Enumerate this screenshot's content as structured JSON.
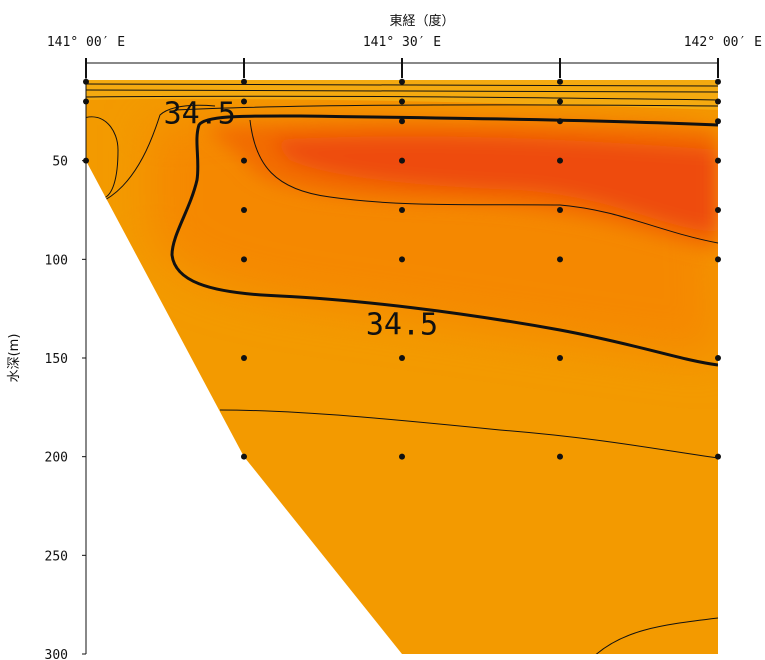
{
  "chart_data": {
    "type": "contour-section",
    "xlabel": "東経（度）",
    "ylabel": "水深(m)",
    "xticks": [
      {
        "value": 141.0,
        "label": "141° 00′ E"
      },
      {
        "value": 141.5,
        "label": "141° 30′ E"
      },
      {
        "value": 142.0,
        "label": "142° 00′ E"
      }
    ],
    "station_x": [
      141.0,
      141.25,
      141.5,
      141.75,
      142.0
    ],
    "yticks": [
      50,
      100,
      150,
      200,
      250,
      300
    ],
    "xlim": [
      141.0,
      142.0
    ],
    "ylim": [
      0,
      300
    ],
    "seafloor": [
      [
        141.0,
        50
      ],
      [
        141.25,
        200
      ],
      [
        141.5,
        300
      ]
    ],
    "stations": [
      {
        "x": 141.0,
        "depths": [
          10,
          20,
          50
        ]
      },
      {
        "x": 141.25,
        "depths": [
          10,
          20,
          50,
          75,
          100,
          150,
          200
        ]
      },
      {
        "x": 141.5,
        "depths": [
          10,
          20,
          30,
          50,
          75,
          100,
          150,
          200
        ]
      },
      {
        "x": 141.75,
        "depths": [
          10,
          20,
          30,
          50,
          75,
          100,
          150,
          200
        ]
      },
      {
        "x": 142.0,
        "depths": [
          10,
          20,
          30,
          50,
          75,
          100,
          150,
          200
        ]
      }
    ],
    "contour_labels": [
      {
        "text": "34.5",
        "x": 141.18,
        "y": 26
      },
      {
        "text": "34.5",
        "x": 141.5,
        "y": 133
      }
    ],
    "colors": {
      "low": "#f3a000",
      "mid": "#f58a00",
      "high": "#f05a08",
      "peak": "#ee4a0a",
      "line": "#111111"
    }
  }
}
